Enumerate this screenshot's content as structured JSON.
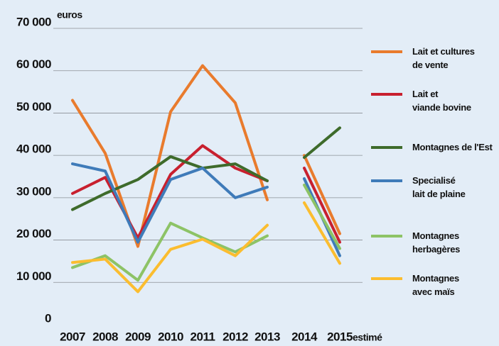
{
  "chart_data": {
    "type": "line",
    "y_axis_label": "euros",
    "categories": [
      "2007",
      "2008",
      "2009",
      "2010",
      "2011",
      "2012",
      "2013",
      "2014",
      "2015"
    ],
    "x_annotation": "estimé",
    "line_break_after": "2013",
    "ylim": [
      0,
      70000
    ],
    "yticks": [
      {
        "value": 0,
        "label": "0"
      },
      {
        "value": 10000,
        "label": "10 000"
      },
      {
        "value": 20000,
        "label": "20 000"
      },
      {
        "value": 30000,
        "label": "30 000"
      },
      {
        "value": 40000,
        "label": "40 000"
      },
      {
        "value": 50000,
        "label": "50 000"
      },
      {
        "value": 60000,
        "label": "60 000"
      },
      {
        "value": 70000,
        "label": "70 000"
      }
    ],
    "grid": true,
    "legend": "right",
    "series": [
      {
        "name": "Lait et cultures\nde vente",
        "color": "#e97b2d",
        "values": [
          53000,
          40500,
          18500,
          50300,
          61200,
          52400,
          29500,
          40000,
          21500
        ]
      },
      {
        "name": "Lait et\nviande bovine",
        "color": "#c8202f",
        "values": [
          31000,
          34800,
          20500,
          35500,
          42300,
          37000,
          34000,
          37000,
          19500
        ]
      },
      {
        "name": "Montagnes de l'Est",
        "color": "#3e6b2b",
        "values": [
          27200,
          31000,
          34300,
          39700,
          37000,
          38000,
          34000,
          39500,
          46500
        ]
      },
      {
        "name": "Specialisé\nlait de plaine",
        "color": "#3f7bb9",
        "values": [
          38000,
          36300,
          19500,
          34300,
          37000,
          30000,
          32500,
          34500,
          16300
        ]
      },
      {
        "name": "Montagnes\nherbagères",
        "color": "#8dc366",
        "values": [
          13500,
          16300,
          10500,
          24000,
          20500,
          17200,
          21000,
          33000,
          18000
        ]
      },
      {
        "name": "Montagnes\navec  maïs",
        "color": "#fbbd2f",
        "values": [
          14700,
          15500,
          7800,
          17800,
          20200,
          16300,
          23500,
          28800,
          14500
        ]
      }
    ]
  }
}
